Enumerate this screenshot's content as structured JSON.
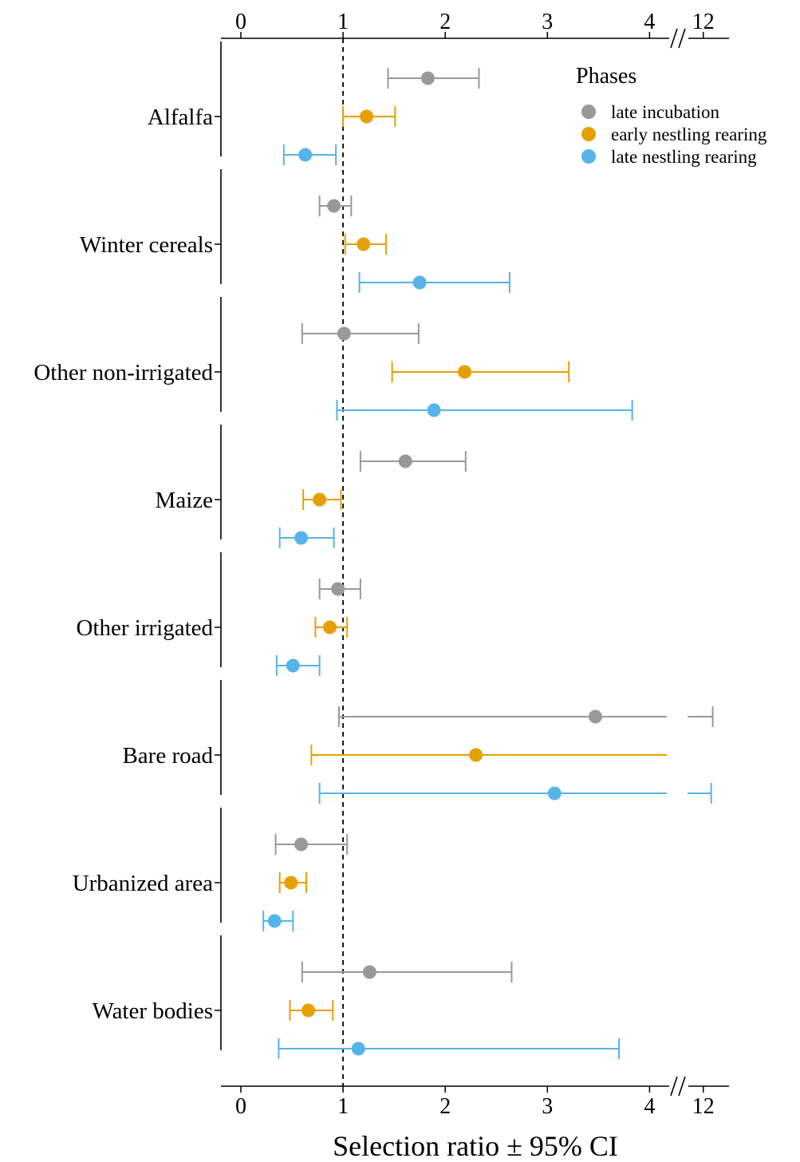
{
  "chart_data": {
    "type": "scatter",
    "plot_style": "dot-and-whisker",
    "xlabel": "Selection ratio ± 95% CI",
    "x_axis": {
      "segments": [
        {
          "range": [
            -0.07,
            4.15
          ],
          "ticks": [
            "0",
            "1",
            "2",
            "3",
            "4"
          ]
        },
        {
          "range": [
            11.5,
            12.6
          ],
          "ticks": [
            "12"
          ]
        }
      ],
      "break_symbol": "//",
      "axes_shown": [
        "top",
        "bottom"
      ]
    },
    "reference_line": {
      "x": 1,
      "style": "dashed"
    },
    "legend": {
      "title": "Phases",
      "position": "top-right",
      "entries": [
        {
          "name": "late incubation",
          "color": "#999999"
        },
        {
          "name": "early nestling rearing",
          "color": "#E69F00"
        },
        {
          "name": "late nestling rearing",
          "color": "#56B4E9"
        }
      ]
    },
    "categories": [
      "Alfalfa",
      "Winter cereals",
      "Other non-irrigated",
      "Maize",
      "Other irrigated",
      "Bare road",
      "Urbanized area",
      "Water bodies"
    ],
    "series": [
      {
        "name": "late incubation",
        "color": "#999999",
        "points": [
          {
            "estimate": 1.83,
            "lower": 1.44,
            "upper": 2.33
          },
          {
            "estimate": 0.91,
            "lower": 0.77,
            "upper": 1.08
          },
          {
            "estimate": 1.01,
            "lower": 0.6,
            "upper": 1.74
          },
          {
            "estimate": 1.61,
            "lower": 1.17,
            "upper": 2.2
          },
          {
            "estimate": 0.95,
            "lower": 0.77,
            "upper": 1.17
          },
          {
            "estimate": 3.47,
            "lower": 0.96,
            "upper": 12.3
          },
          {
            "estimate": 0.59,
            "lower": 0.34,
            "upper": 1.04
          },
          {
            "estimate": 1.26,
            "lower": 0.6,
            "upper": 2.65
          }
        ]
      },
      {
        "name": "early nestling rearing",
        "color": "#E69F00",
        "points": [
          {
            "estimate": 1.23,
            "lower": 1.0,
            "upper": 1.51
          },
          {
            "estimate": 1.2,
            "lower": 1.02,
            "upper": 1.42
          },
          {
            "estimate": 2.19,
            "lower": 1.48,
            "upper": 3.21
          },
          {
            "estimate": 0.77,
            "lower": 0.61,
            "upper": 0.98
          },
          {
            "estimate": 0.87,
            "lower": 0.73,
            "upper": 1.04
          },
          {
            "estimate": 2.3,
            "lower": 0.69,
            "upper": 7.7
          },
          {
            "estimate": 0.49,
            "lower": 0.38,
            "upper": 0.64
          },
          {
            "estimate": 0.66,
            "lower": 0.48,
            "upper": 0.9
          }
        ]
      },
      {
        "name": "late nestling rearing",
        "color": "#56B4E9",
        "points": [
          {
            "estimate": 0.63,
            "lower": 0.42,
            "upper": 0.93
          },
          {
            "estimate": 1.75,
            "lower": 1.16,
            "upper": 2.63
          },
          {
            "estimate": 1.89,
            "lower": 0.94,
            "upper": 3.83
          },
          {
            "estimate": 0.59,
            "lower": 0.38,
            "upper": 0.91
          },
          {
            "estimate": 0.51,
            "lower": 0.35,
            "upper": 0.77
          },
          {
            "estimate": 3.07,
            "lower": 0.77,
            "upper": 12.25
          },
          {
            "estimate": 0.33,
            "lower": 0.22,
            "upper": 0.51
          },
          {
            "estimate": 1.15,
            "lower": 0.37,
            "upper": 3.7
          }
        ]
      }
    ]
  }
}
